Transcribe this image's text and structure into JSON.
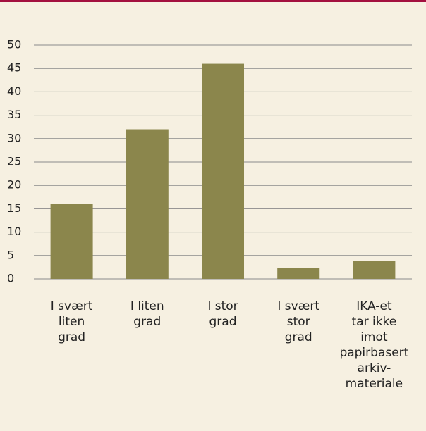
{
  "chart_data": {
    "type": "bar",
    "categories": [
      "I svært\nliten\ngrad",
      "I liten\ngrad",
      "I stor\ngrad",
      "I svært\nstor\ngrad",
      "IKA-et\ntar ikke\nimot\npapirbasert\narkiv-\nmateriale"
    ],
    "values": [
      16,
      32,
      46,
      2.3,
      3.8
    ],
    "color": "#8b864c",
    "ylim": [
      0,
      50
    ],
    "yticks": [
      0,
      5,
      10,
      15,
      20,
      25,
      30,
      35,
      40,
      45,
      50
    ],
    "grid": true
  }
}
